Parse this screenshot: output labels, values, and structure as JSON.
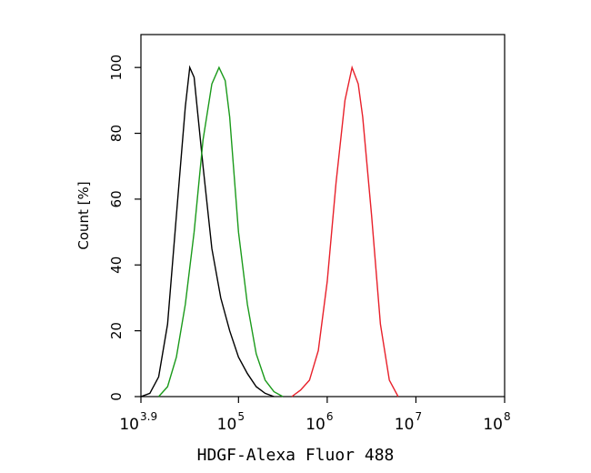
{
  "chart_data": {
    "type": "line",
    "xscale": "log",
    "xlabel": "HDGF-Alexa Fluor 488",
    "ylabel": "Count [%]",
    "xlim": [
      7943.28,
      100000000
    ],
    "ylim": [
      0,
      110
    ],
    "xticks": [
      {
        "value": 7943.28,
        "label": "10",
        "sup": "3.9"
      },
      {
        "value": 100000,
        "label": "10",
        "sup": "5"
      },
      {
        "value": 1000000,
        "label": "10",
        "sup": "6"
      },
      {
        "value": 10000000,
        "label": "10",
        "sup": "7"
      },
      {
        "value": 100000000,
        "label": "10",
        "sup": "8"
      }
    ],
    "yticks": [
      0,
      20,
      40,
      60,
      80,
      100
    ],
    "series": [
      {
        "color": "#000000",
        "x": [
          7943,
          10000,
          12589,
          15849,
          19953,
          25119,
          28184,
          31623,
          39811,
          50119,
          63096,
          79433,
          100000,
          125893,
          158489,
          199526,
          251189
        ],
        "values": [
          0,
          1,
          6,
          22,
          55,
          88,
          100,
          97,
          70,
          45,
          30,
          20,
          12,
          7,
          3,
          1,
          0
        ]
      },
      {
        "color": "#1a9a1a",
        "x": [
          12589,
          15849,
          19953,
          25119,
          31623,
          39811,
          50119,
          60256,
          70795,
          79433,
          100000,
          125893,
          158489,
          199526,
          251189,
          316228
        ],
        "values": [
          0,
          3,
          12,
          28,
          50,
          78,
          95,
          100,
          96,
          85,
          50,
          28,
          13,
          5,
          1.5,
          0
        ]
      },
      {
        "color": "#e8202a",
        "x": [
          398107,
          501187,
          630957,
          794328,
          1000000,
          1258925,
          1584893,
          1905461,
          2238721,
          2511886,
          3162278,
          3981072,
          5011872,
          6309573
        ],
        "values": [
          0,
          2,
          5,
          14,
          35,
          65,
          90,
          100,
          95,
          85,
          55,
          22,
          5,
          0
        ]
      }
    ]
  }
}
